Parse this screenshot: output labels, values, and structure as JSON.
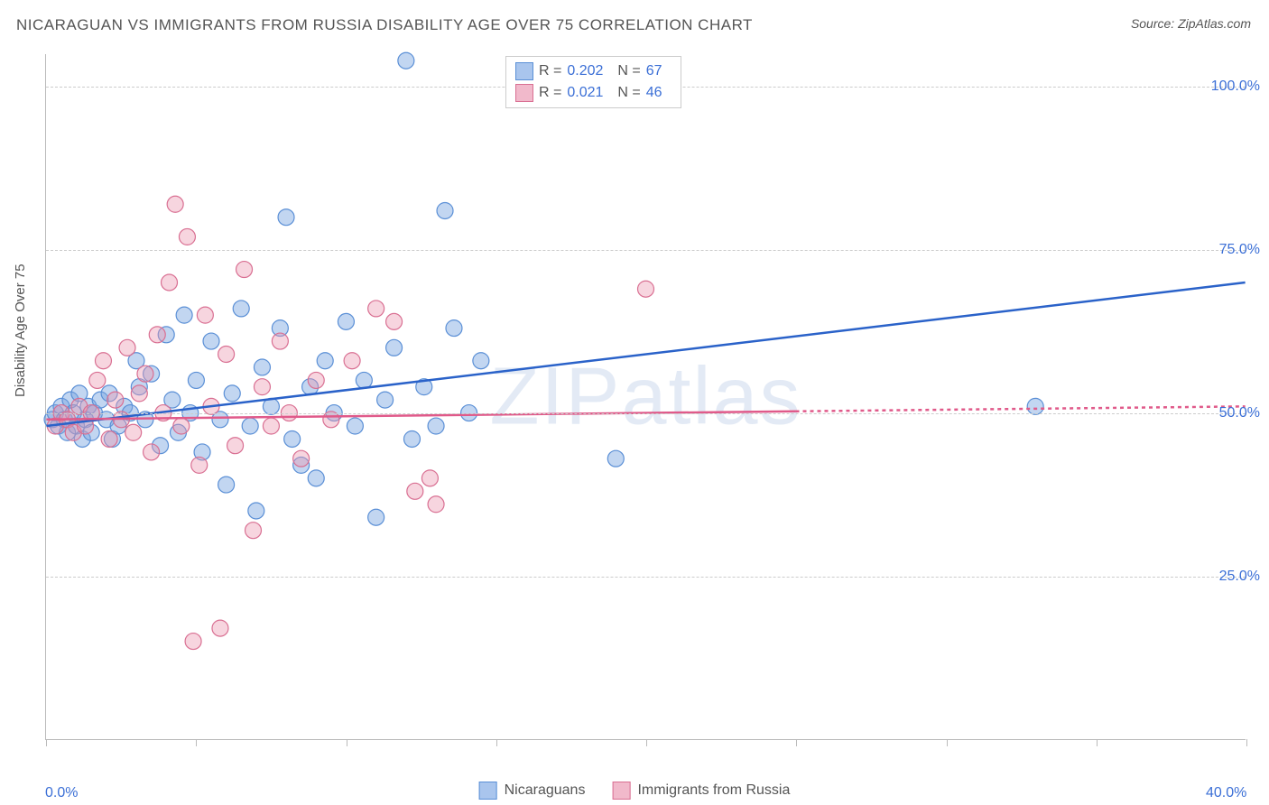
{
  "title": "NICARAGUAN VS IMMIGRANTS FROM RUSSIA DISABILITY AGE OVER 75 CORRELATION CHART",
  "source_label": "Source: ",
  "source_name": "ZipAtlas.com",
  "ylabel": "Disability Age Over 75",
  "watermark": "ZIPatlas",
  "chart": {
    "type": "scatter",
    "background_color": "#ffffff",
    "grid_color": "#cccccc",
    "axis_color": "#bbbbbb",
    "xlim": [
      0,
      40
    ],
    "ylim": [
      0,
      105
    ],
    "x_ticks": [
      0,
      5,
      10,
      15,
      20,
      25,
      30,
      35,
      40
    ],
    "x_tick_labels": {
      "0": "0.0%",
      "40": "40.0%"
    },
    "y_gridlines": [
      25,
      50,
      75,
      100
    ],
    "y_tick_labels": {
      "25": "25.0%",
      "50": "50.0%",
      "75": "75.0%",
      "100": "100.0%"
    },
    "label_color": "#3b6fd6",
    "title_fontsize": 17,
    "label_fontsize": 15,
    "tick_fontsize": 16,
    "marker_radius": 9,
    "marker_opacity": 0.55,
    "line_width": 2.5
  },
  "series": [
    {
      "name": "Nicaraguans",
      "color_fill": "rgba(120,165,225,0.45)",
      "color_stroke": "#5a8fd6",
      "swatch_fill": "#a9c5ed",
      "swatch_border": "#5a8fd6",
      "R": "0.202",
      "N": "67",
      "trend": {
        "x1": 0,
        "y1": 48,
        "x2": 40,
        "y2": 70,
        "color": "#2a62c9",
        "dash": "none"
      },
      "points": [
        [
          0.2,
          49
        ],
        [
          0.3,
          50
        ],
        [
          0.4,
          48
        ],
        [
          0.5,
          51
        ],
        [
          0.6,
          49
        ],
        [
          0.7,
          47
        ],
        [
          0.8,
          52
        ],
        [
          0.9,
          50
        ],
        [
          1.0,
          48
        ],
        [
          1.1,
          53
        ],
        [
          1.2,
          46
        ],
        [
          1.3,
          49
        ],
        [
          1.4,
          51
        ],
        [
          1.5,
          47
        ],
        [
          1.6,
          50
        ],
        [
          1.8,
          52
        ],
        [
          2.0,
          49
        ],
        [
          2.1,
          53
        ],
        [
          2.2,
          46
        ],
        [
          2.4,
          48
        ],
        [
          2.6,
          51
        ],
        [
          2.8,
          50
        ],
        [
          3.0,
          58
        ],
        [
          3.1,
          54
        ],
        [
          3.3,
          49
        ],
        [
          3.5,
          56
        ],
        [
          3.8,
          45
        ],
        [
          4.0,
          62
        ],
        [
          4.2,
          52
        ],
        [
          4.4,
          47
        ],
        [
          4.6,
          65
        ],
        [
          4.8,
          50
        ],
        [
          5.0,
          55
        ],
        [
          5.2,
          44
        ],
        [
          5.5,
          61
        ],
        [
          5.8,
          49
        ],
        [
          6.0,
          39
        ],
        [
          6.2,
          53
        ],
        [
          6.5,
          66
        ],
        [
          6.8,
          48
        ],
        [
          7.0,
          35
        ],
        [
          7.2,
          57
        ],
        [
          7.5,
          51
        ],
        [
          7.8,
          63
        ],
        [
          8.0,
          80
        ],
        [
          8.2,
          46
        ],
        [
          8.5,
          42
        ],
        [
          8.8,
          54
        ],
        [
          9.0,
          40
        ],
        [
          9.3,
          58
        ],
        [
          9.6,
          50
        ],
        [
          10.0,
          64
        ],
        [
          10.3,
          48
        ],
        [
          10.6,
          55
        ],
        [
          11.0,
          34
        ],
        [
          11.3,
          52
        ],
        [
          11.6,
          60
        ],
        [
          12.0,
          104
        ],
        [
          12.2,
          46
        ],
        [
          12.6,
          54
        ],
        [
          13.0,
          48
        ],
        [
          13.3,
          81
        ],
        [
          13.6,
          63
        ],
        [
          14.1,
          50
        ],
        [
          14.5,
          58
        ],
        [
          19.0,
          43
        ],
        [
          33.0,
          51
        ]
      ]
    },
    {
      "name": "Immigrants from Russia",
      "color_fill": "rgba(235,150,175,0.4)",
      "color_stroke": "#d96f92",
      "swatch_fill": "#f1b9cb",
      "swatch_border": "#d96f92",
      "R": "0.021",
      "N": "46",
      "trend": {
        "x1": 0,
        "y1": 49,
        "x2": 40,
        "y2": 51,
        "color": "#e05a8a",
        "dash": "4 4",
        "solid_until": 25
      },
      "points": [
        [
          0.3,
          48
        ],
        [
          0.5,
          50
        ],
        [
          0.7,
          49
        ],
        [
          0.9,
          47
        ],
        [
          1.1,
          51
        ],
        [
          1.3,
          48
        ],
        [
          1.5,
          50
        ],
        [
          1.7,
          55
        ],
        [
          1.9,
          58
        ],
        [
          2.1,
          46
        ],
        [
          2.3,
          52
        ],
        [
          2.5,
          49
        ],
        [
          2.7,
          60
        ],
        [
          2.9,
          47
        ],
        [
          3.1,
          53
        ],
        [
          3.3,
          56
        ],
        [
          3.5,
          44
        ],
        [
          3.7,
          62
        ],
        [
          3.9,
          50
        ],
        [
          4.1,
          70
        ],
        [
          4.3,
          82
        ],
        [
          4.5,
          48
        ],
        [
          4.7,
          77
        ],
        [
          4.9,
          15
        ],
        [
          5.1,
          42
        ],
        [
          5.3,
          65
        ],
        [
          5.5,
          51
        ],
        [
          5.8,
          17
        ],
        [
          6.0,
          59
        ],
        [
          6.3,
          45
        ],
        [
          6.6,
          72
        ],
        [
          6.9,
          32
        ],
        [
          7.2,
          54
        ],
        [
          7.5,
          48
        ],
        [
          7.8,
          61
        ],
        [
          8.1,
          50
        ],
        [
          8.5,
          43
        ],
        [
          9.0,
          55
        ],
        [
          9.5,
          49
        ],
        [
          10.2,
          58
        ],
        [
          11.0,
          66
        ],
        [
          11.6,
          64
        ],
        [
          12.3,
          38
        ],
        [
          12.8,
          40
        ],
        [
          13.0,
          36
        ],
        [
          20.0,
          69
        ]
      ]
    }
  ],
  "legend_labels": {
    "R": "R =",
    "N": "N ="
  }
}
